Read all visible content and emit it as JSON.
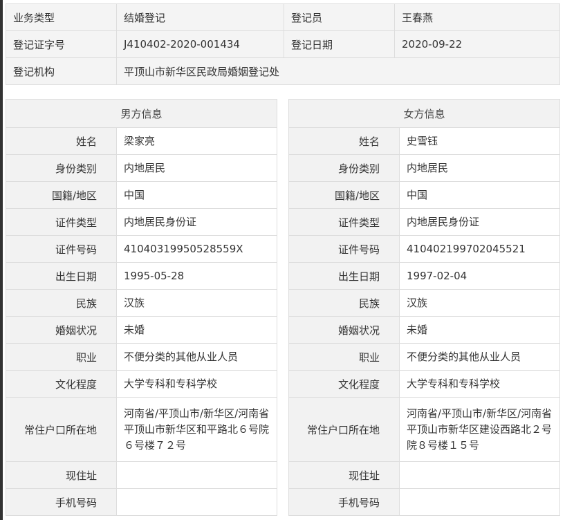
{
  "summary": {
    "business_type_label": "业务类型",
    "business_type": "结婚登记",
    "registrar_label": "登记员",
    "registrar": "王春燕",
    "cert_no_label": "登记证字号",
    "cert_no": "J410402-2020-001434",
    "date_label": "登记日期",
    "date": "2020-09-22",
    "office_label": "登记机构",
    "office": "平顶山市新华区民政局婚姻登记处"
  },
  "labels": [
    "姓名",
    "身份类别",
    "国籍/地区",
    "证件类型",
    "证件号码",
    "出生日期",
    "民族",
    "婚姻状况",
    "职业",
    "文化程度",
    "常住户口所在地",
    "现住址",
    "手机号码"
  ],
  "male": {
    "title": "男方信息",
    "values": [
      "梁家亮",
      "内地居民",
      "中国",
      "内地居民身份证",
      "41040319950528559X",
      "1995-05-28",
      "汉族",
      "未婚",
      "不便分类的其他从业人员",
      "大学专科和专科学校",
      "河南省/平顶山市/新华区/河南省平顶山市新华区和平路北６号院６号楼７２号",
      "",
      ""
    ]
  },
  "female": {
    "title": "女方信息",
    "values": [
      "史雪钰",
      "内地居民",
      "中国",
      "内地居民身份证",
      "410402199702045521",
      "1997-02-04",
      "汉族",
      "未婚",
      "不便分类的其他从业人员",
      "大学专科和专科学校",
      "河南省/平顶山市/新华区/河南省平顶山市新华区建设西路北２号院８号楼１５号",
      "",
      ""
    ]
  }
}
